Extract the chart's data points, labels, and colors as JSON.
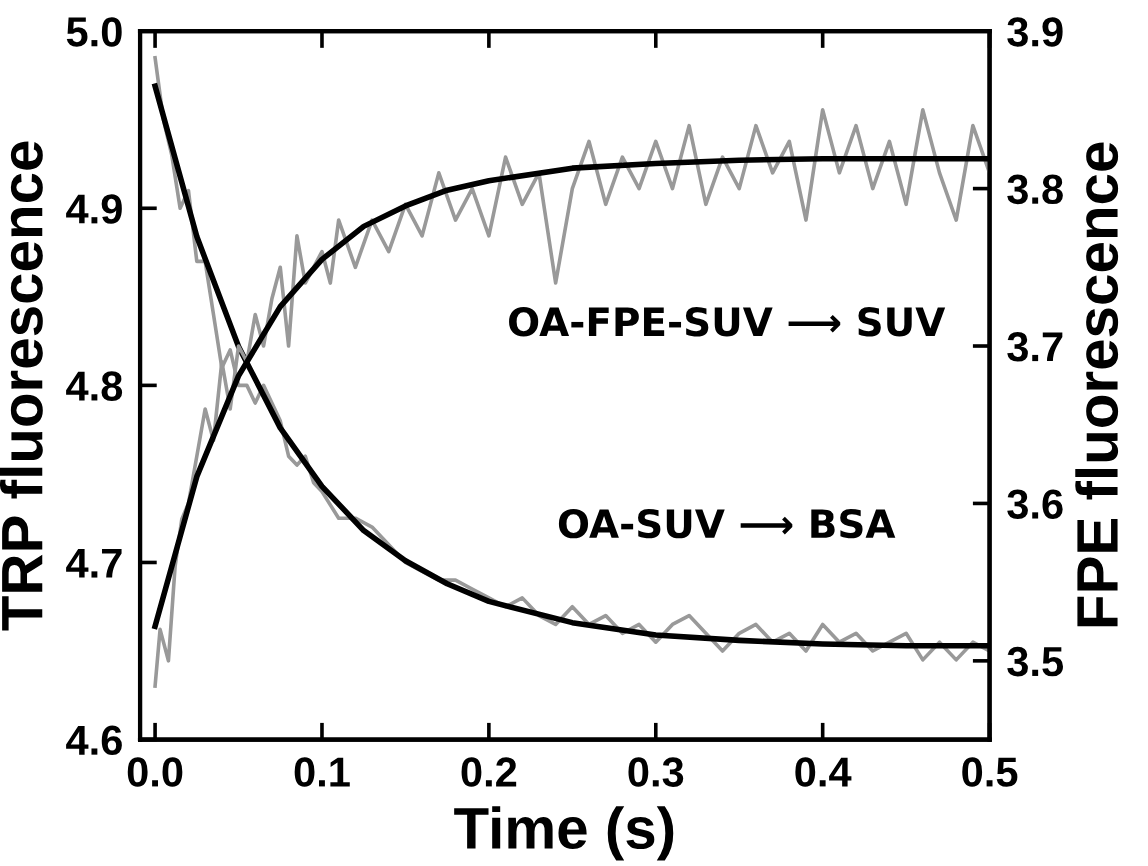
{
  "chart_data": {
    "type": "line",
    "xlabel": "Time (s)",
    "ylabel": "TRP fluorescence",
    "y2label": "FPE fluorescence",
    "xlim": [
      -0.009,
      0.5
    ],
    "xticks": [
      {
        "value": 0,
        "label": "0.0"
      },
      0.1,
      0.2,
      0.3,
      0.4,
      0.5
    ],
    "ylim": [
      4.6,
      5.0
    ],
    "yticks": [
      4.6,
      4.7,
      4.8,
      4.9,
      {
        "value": 5.0,
        "label": "5.0"
      }
    ],
    "y2lim": [
      3.45,
      3.9
    ],
    "y2ticks": [
      3.5,
      3.6,
      3.7,
      3.8,
      3.9
    ],
    "grid": false,
    "legend": false,
    "marker": "none",
    "line_style": "solid",
    "annotations": [
      "OA-FPE-SUV ⟶ SUV",
      "OA-SUV ⟶ BSA"
    ],
    "series": [
      {
        "color": "#999999",
        "x": [
          0,
          0.005,
          0.01,
          0.015,
          0.02,
          0.025,
          0.03,
          0.035,
          0.04,
          0.045,
          0.05,
          0.055,
          0.06,
          0.065,
          0.07,
          0.075,
          0.08,
          0.085,
          0.09,
          0.095,
          0.1,
          0.11,
          0.12,
          0.13,
          0.14,
          0.15,
          0.16,
          0.17,
          0.18,
          0.19,
          0.2,
          0.21,
          0.22,
          0.23,
          0.24,
          0.25,
          0.26,
          0.27,
          0.28,
          0.29,
          0.3,
          0.31,
          0.32,
          0.33,
          0.34,
          0.35,
          0.36,
          0.37,
          0.38,
          0.39,
          0.4,
          0.41,
          0.42,
          0.43,
          0.44,
          0.45,
          0.46,
          0.47,
          0.48,
          0.49,
          0.5
        ],
        "values": [
          4.985,
          4.95,
          4.93,
          4.9,
          4.91,
          4.87,
          4.87,
          4.84,
          4.81,
          4.82,
          4.8,
          4.8,
          4.79,
          4.8,
          4.79,
          4.78,
          4.76,
          4.755,
          4.76,
          4.745,
          4.74,
          4.725,
          4.725,
          4.72,
          4.71,
          4.7,
          4.695,
          4.69,
          4.69,
          4.685,
          4.68,
          4.675,
          4.68,
          4.67,
          4.665,
          4.675,
          4.665,
          4.67,
          4.66,
          4.665,
          4.655,
          4.665,
          4.67,
          4.66,
          4.65,
          4.66,
          4.665,
          4.655,
          4.66,
          4.65,
          4.665,
          4.655,
          4.66,
          4.65,
          4.655,
          4.66,
          4.645,
          4.655,
          4.645,
          4.655,
          4.65
        ]
      },
      {
        "color": "#999999",
        "axis": "y2",
        "x": [
          0,
          0.003,
          0.008,
          0.012,
          0.016,
          0.02,
          0.025,
          0.03,
          0.035,
          0.04,
          0.045,
          0.05,
          0.055,
          0.06,
          0.065,
          0.07,
          0.075,
          0.08,
          0.085,
          0.09,
          0.095,
          0.1,
          0.105,
          0.11,
          0.12,
          0.13,
          0.14,
          0.15,
          0.16,
          0.17,
          0.18,
          0.19,
          0.2,
          0.21,
          0.22,
          0.23,
          0.24,
          0.25,
          0.26,
          0.27,
          0.28,
          0.29,
          0.3,
          0.31,
          0.32,
          0.33,
          0.34,
          0.35,
          0.36,
          0.37,
          0.38,
          0.39,
          0.4,
          0.41,
          0.42,
          0.43,
          0.44,
          0.45,
          0.46,
          0.47,
          0.48,
          0.49,
          0.5
        ],
        "values": [
          3.484,
          3.52,
          3.5,
          3.56,
          3.59,
          3.6,
          3.63,
          3.66,
          3.64,
          3.69,
          3.66,
          3.7,
          3.69,
          3.72,
          3.7,
          3.73,
          3.75,
          3.7,
          3.77,
          3.74,
          3.75,
          3.76,
          3.74,
          3.78,
          3.75,
          3.78,
          3.76,
          3.79,
          3.77,
          3.81,
          3.78,
          3.8,
          3.77,
          3.82,
          3.79,
          3.81,
          3.74,
          3.8,
          3.83,
          3.79,
          3.82,
          3.8,
          3.83,
          3.8,
          3.84,
          3.79,
          3.82,
          3.8,
          3.84,
          3.81,
          3.83,
          3.78,
          3.85,
          3.81,
          3.84,
          3.8,
          3.83,
          3.79,
          3.85,
          3.81,
          3.78,
          3.84,
          3.81
        ]
      },
      {
        "color": "#000000",
        "x": [
          0,
          0.025,
          0.05,
          0.075,
          0.1,
          0.125,
          0.15,
          0.175,
          0.2,
          0.25,
          0.3,
          0.35,
          0.4,
          0.45,
          0.5
        ],
        "values": [
          4.969,
          4.884,
          4.822,
          4.776,
          4.743,
          4.718,
          4.701,
          4.688,
          4.678,
          4.666,
          4.659,
          4.656,
          4.654,
          4.653,
          4.653
        ]
      },
      {
        "color": "#000000",
        "axis": "y2",
        "x": [
          0,
          0.025,
          0.05,
          0.075,
          0.1,
          0.125,
          0.15,
          0.175,
          0.2,
          0.25,
          0.3,
          0.35,
          0.4,
          0.5
        ],
        "values": [
          3.522,
          3.617,
          3.681,
          3.725,
          3.755,
          3.776,
          3.789,
          3.799,
          3.805,
          3.813,
          3.816,
          3.818,
          3.819,
          3.819
        ]
      }
    ]
  }
}
